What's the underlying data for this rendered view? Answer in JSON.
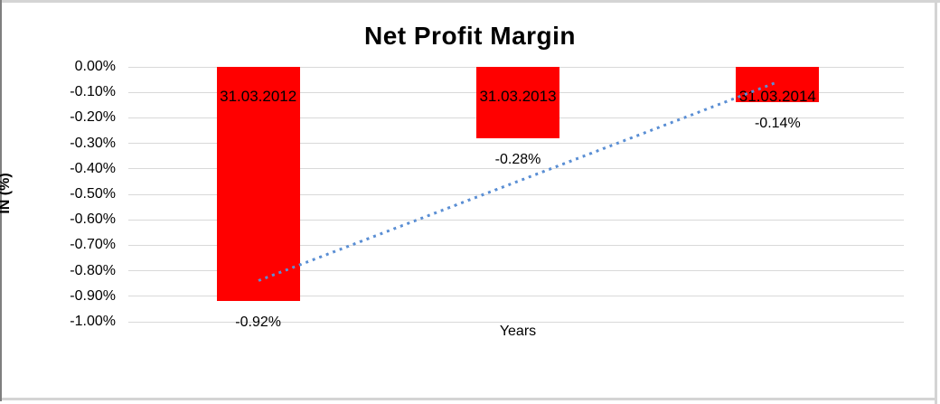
{
  "chart_data": {
    "type": "bar",
    "title": "Net Profit Margin",
    "xlabel": "Years",
    "ylabel": "IN (%)",
    "categories": [
      "31.03.2012",
      "31.03.2013",
      "31.03.2014"
    ],
    "values": [
      -0.92,
      -0.28,
      -0.14
    ],
    "value_labels": [
      "-0.92%",
      "-0.28%",
      "-0.14%"
    ],
    "bar_color": "#ff0000",
    "ylim": [
      -1.0,
      0.0
    ],
    "yticks": [
      "0.00%",
      "-0.10%",
      "-0.20%",
      "-0.30%",
      "-0.40%",
      "-0.50%",
      "-0.60%",
      "-0.70%",
      "-0.80%",
      "-0.90%",
      "-1.00%"
    ],
    "grid": "horizontal",
    "gridline_color": "#d9d9d9",
    "legend": "none",
    "trendline": {
      "type": "linear",
      "style": "dotted",
      "color": "#5b8fd4",
      "start_value": -0.837,
      "end_value": -0.057
    }
  }
}
